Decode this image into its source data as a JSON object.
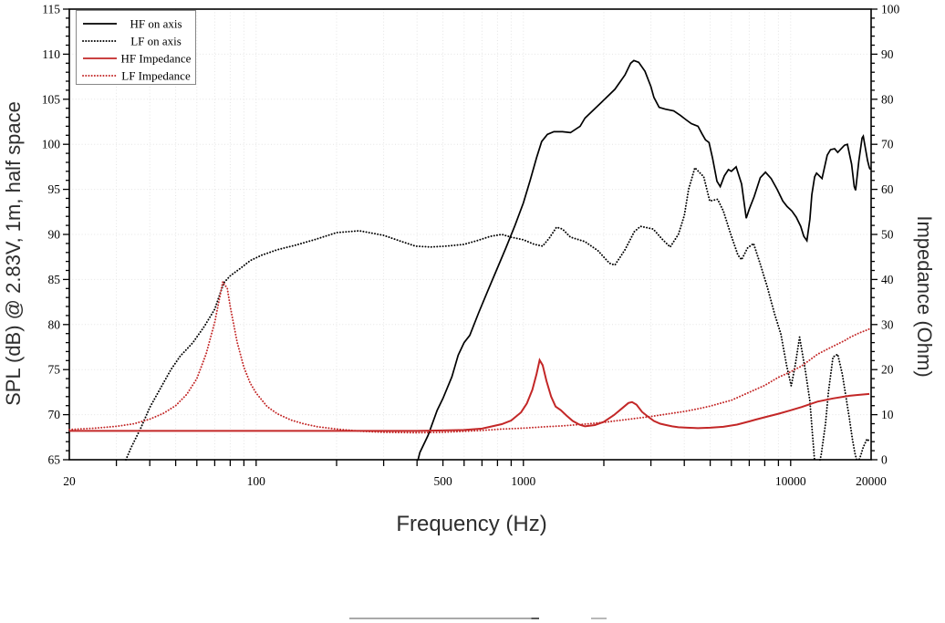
{
  "chart_data": {
    "type": "line",
    "title": "",
    "xlabel": "Frequency (Hz)",
    "ylabel_left": "SPL (dB) @ 2.83V, 1m, half space",
    "ylabel_right": "Impedance (Ohm)",
    "x_scale": "log",
    "x_range": [
      20,
      20000
    ],
    "x_tick_labels": [
      20,
      100,
      500,
      1000,
      10000,
      20000
    ],
    "y_left_range": [
      65,
      115
    ],
    "y_left_major_step": 5,
    "y_left_minor_step": 1,
    "y_right_range": [
      0,
      100
    ],
    "y_right_major_step": 10,
    "y_right_minor_step": 2,
    "grid": true,
    "grid_color": "#e4e4e4",
    "frame_color": "#000000",
    "legend_position": "top-left",
    "series": [
      {
        "name": "HF on axis",
        "axis": "left",
        "style": "solid",
        "color": "#000000",
        "points": [
          [
            392,
            63.5
          ],
          [
            410,
            65.8
          ],
          [
            440,
            67.7
          ],
          [
            476,
            70.5
          ],
          [
            500,
            71.8
          ],
          [
            540,
            74.2
          ],
          [
            570,
            76.6
          ],
          [
            600,
            78
          ],
          [
            630,
            78.8
          ],
          [
            680,
            81.3
          ],
          [
            735,
            83.7
          ],
          [
            795,
            86.1
          ],
          [
            860,
            88.5
          ],
          [
            930,
            91
          ],
          [
            1000,
            93.5
          ],
          [
            1060,
            96
          ],
          [
            1120,
            98.5
          ],
          [
            1170,
            100.3
          ],
          [
            1230,
            101.1
          ],
          [
            1300,
            101.4
          ],
          [
            1400,
            101.4
          ],
          [
            1500,
            101.3
          ],
          [
            1630,
            102
          ],
          [
            1700,
            102.9
          ],
          [
            1950,
            104.6
          ],
          [
            2200,
            106.1
          ],
          [
            2400,
            107.7
          ],
          [
            2520,
            109
          ],
          [
            2590,
            109.3
          ],
          [
            2700,
            109.1
          ],
          [
            2850,
            108.1
          ],
          [
            3000,
            106.4
          ],
          [
            3080,
            105.2
          ],
          [
            3220,
            104.1
          ],
          [
            3400,
            103.9
          ],
          [
            3650,
            103.7
          ],
          [
            3870,
            103.2
          ],
          [
            4070,
            102.7
          ],
          [
            4250,
            102.3
          ],
          [
            4500,
            102
          ],
          [
            4650,
            101.2
          ],
          [
            4800,
            100.5
          ],
          [
            4950,
            100.2
          ],
          [
            5100,
            98.5
          ],
          [
            5300,
            95.9
          ],
          [
            5450,
            95.3
          ],
          [
            5650,
            96.5
          ],
          [
            5850,
            97.2
          ],
          [
            6000,
            97
          ],
          [
            6250,
            97.5
          ],
          [
            6550,
            95.6
          ],
          [
            6700,
            93.5
          ],
          [
            6820,
            91.8
          ],
          [
            7000,
            92.8
          ],
          [
            7300,
            94.2
          ],
          [
            7700,
            96.3
          ],
          [
            8050,
            96.9
          ],
          [
            8450,
            96.2
          ],
          [
            8900,
            95
          ],
          [
            9350,
            93.7
          ],
          [
            9700,
            93.1
          ],
          [
            10100,
            92.6
          ],
          [
            10500,
            91.9
          ],
          [
            10900,
            90.9
          ],
          [
            11200,
            89.8
          ],
          [
            11500,
            89.3
          ],
          [
            11800,
            91.7
          ],
          [
            12000,
            94.4
          ],
          [
            12300,
            96.4
          ],
          [
            12500,
            96.8
          ],
          [
            13100,
            96.2
          ],
          [
            13700,
            98.8
          ],
          [
            14100,
            99.4
          ],
          [
            14600,
            99.5
          ],
          [
            15000,
            99.1
          ],
          [
            15900,
            99.9
          ],
          [
            16300,
            100
          ],
          [
            16900,
            97.8
          ],
          [
            17300,
            95.3
          ],
          [
            17500,
            94.9
          ],
          [
            18000,
            98.2
          ],
          [
            18500,
            100.7
          ],
          [
            18700,
            100.9
          ],
          [
            19400,
            98.2
          ],
          [
            19700,
            97.4
          ],
          [
            19900,
            97.2
          ]
        ]
      },
      {
        "name": "LF on axis",
        "axis": "left",
        "style": "dotted",
        "color": "#000000",
        "points": [
          [
            31,
            63.5
          ],
          [
            34,
            66.3
          ],
          [
            37,
            68.5
          ],
          [
            40,
            70.8
          ],
          [
            44,
            73
          ],
          [
            48,
            75
          ],
          [
            52,
            76.5
          ],
          [
            58,
            78
          ],
          [
            64,
            79.8
          ],
          [
            70,
            81.7
          ],
          [
            74,
            83.8
          ],
          [
            76,
            84.7
          ],
          [
            80,
            85.4
          ],
          [
            87,
            86.2
          ],
          [
            95,
            87.1
          ],
          [
            105,
            87.7
          ],
          [
            120,
            88.3
          ],
          [
            140,
            88.8
          ],
          [
            165,
            89.4
          ],
          [
            200,
            90.2
          ],
          [
            243,
            90.4
          ],
          [
            300,
            89.9
          ],
          [
            343,
            89.3
          ],
          [
            394,
            88.7
          ],
          [
            450,
            88.6
          ],
          [
            515,
            88.7
          ],
          [
            600,
            88.9
          ],
          [
            670,
            89.3
          ],
          [
            755,
            89.8
          ],
          [
            830,
            90
          ],
          [
            900,
            89.7
          ],
          [
            1000,
            89.4
          ],
          [
            1100,
            88.9
          ],
          [
            1180,
            88.7
          ],
          [
            1250,
            89.6
          ],
          [
            1330,
            90.8
          ],
          [
            1400,
            90.6
          ],
          [
            1500,
            89.7
          ],
          [
            1700,
            89.2
          ],
          [
            1900,
            88.2
          ],
          [
            2100,
            86.8
          ],
          [
            2200,
            86.6
          ],
          [
            2400,
            88.3
          ],
          [
            2600,
            90.3
          ],
          [
            2740,
            90.9
          ],
          [
            3060,
            90.6
          ],
          [
            3300,
            89.5
          ],
          [
            3540,
            88.6
          ],
          [
            3800,
            90
          ],
          [
            4000,
            92.1
          ],
          [
            4150,
            95
          ],
          [
            4380,
            97.4
          ],
          [
            4730,
            96.4
          ],
          [
            4980,
            93.7
          ],
          [
            5330,
            93.9
          ],
          [
            5600,
            92.6
          ],
          [
            5970,
            90
          ],
          [
            6350,
            87.7
          ],
          [
            6550,
            87.2
          ],
          [
            6900,
            88.5
          ],
          [
            7260,
            89
          ],
          [
            7700,
            86.7
          ],
          [
            8150,
            84.3
          ],
          [
            8700,
            81.2
          ],
          [
            9200,
            78.9
          ],
          [
            9650,
            75.5
          ],
          [
            10050,
            73.2
          ],
          [
            10400,
            75.5
          ],
          [
            10800,
            78.6
          ],
          [
            11350,
            74.9
          ],
          [
            11800,
            71.5
          ],
          [
            12050,
            68.1
          ],
          [
            12300,
            64.8
          ],
          [
            12600,
            63.8
          ],
          [
            13000,
            65.5
          ],
          [
            13500,
            69
          ],
          [
            13850,
            72.5
          ],
          [
            14400,
            76.4
          ],
          [
            15000,
            76.7
          ],
          [
            15600,
            74.5
          ],
          [
            16000,
            72.5
          ],
          [
            16600,
            69.5
          ],
          [
            17000,
            67.4
          ],
          [
            17400,
            65.7
          ],
          [
            17800,
            64.6
          ],
          [
            18300,
            65.5
          ],
          [
            18700,
            66.4
          ],
          [
            19300,
            67.3
          ],
          [
            19800,
            67
          ]
        ]
      },
      {
        "name": "HF Impedance",
        "axis": "right",
        "style": "solid",
        "color": "#c32727",
        "points": [
          [
            20,
            6.4
          ],
          [
            100,
            6.4
          ],
          [
            200,
            6.4
          ],
          [
            300,
            6.4
          ],
          [
            400,
            6.4
          ],
          [
            500,
            6.5
          ],
          [
            600,
            6.6
          ],
          [
            700,
            6.9
          ],
          [
            830,
            7.9
          ],
          [
            900,
            8.7
          ],
          [
            980,
            10.5
          ],
          [
            1030,
            12.5
          ],
          [
            1080,
            15.5
          ],
          [
            1120,
            19
          ],
          [
            1150,
            22.1
          ],
          [
            1180,
            21
          ],
          [
            1220,
            17.5
          ],
          [
            1270,
            14
          ],
          [
            1320,
            11.8
          ],
          [
            1380,
            11
          ],
          [
            1450,
            9.8
          ],
          [
            1530,
            8.6
          ],
          [
            1620,
            7.8
          ],
          [
            1700,
            7.4
          ],
          [
            1850,
            7.7
          ],
          [
            2000,
            8.4
          ],
          [
            2180,
            9.9
          ],
          [
            2350,
            11.5
          ],
          [
            2470,
            12.6
          ],
          [
            2550,
            12.8
          ],
          [
            2650,
            12.2
          ],
          [
            2780,
            10.6
          ],
          [
            2950,
            9.4
          ],
          [
            3080,
            8.6
          ],
          [
            3250,
            8
          ],
          [
            3420,
            7.7
          ],
          [
            3600,
            7.4
          ],
          [
            3800,
            7.2
          ],
          [
            4100,
            7.1
          ],
          [
            4500,
            7
          ],
          [
            5000,
            7.1
          ],
          [
            5600,
            7.3
          ],
          [
            6300,
            7.8
          ],
          [
            7000,
            8.5
          ],
          [
            7400,
            8.9
          ],
          [
            8200,
            9.6
          ],
          [
            9000,
            10.2
          ],
          [
            9900,
            10.9
          ],
          [
            11000,
            11.7
          ],
          [
            12600,
            12.9
          ],
          [
            14400,
            13.6
          ],
          [
            16600,
            14.2
          ],
          [
            18000,
            14.4
          ],
          [
            19700,
            14.6
          ]
        ]
      },
      {
        "name": "LF Impedance",
        "axis": "right",
        "style": "dotted",
        "color": "#c32727",
        "points": [
          [
            20,
            6.7
          ],
          [
            25,
            7
          ],
          [
            30,
            7.4
          ],
          [
            35,
            8
          ],
          [
            40,
            9
          ],
          [
            45,
            10.3
          ],
          [
            50,
            12
          ],
          [
            55,
            14.5
          ],
          [
            60,
            18
          ],
          [
            65,
            23.5
          ],
          [
            70,
            30.5
          ],
          [
            73,
            36
          ],
          [
            75,
            39.5
          ],
          [
            78,
            38
          ],
          [
            80,
            34
          ],
          [
            85,
            26
          ],
          [
            90,
            20.5
          ],
          [
            95,
            17
          ],
          [
            100,
            14.8
          ],
          [
            110,
            11.8
          ],
          [
            120,
            10.2
          ],
          [
            135,
            8.8
          ],
          [
            150,
            8
          ],
          [
            170,
            7.3
          ],
          [
            200,
            6.8
          ],
          [
            250,
            6.3
          ],
          [
            300,
            6.1
          ],
          [
            400,
            6
          ],
          [
            500,
            6.1
          ],
          [
            600,
            6.3
          ],
          [
            700,
            6.5
          ],
          [
            830,
            6.8
          ],
          [
            1000,
            7
          ],
          [
            1200,
            7.3
          ],
          [
            1400,
            7.5
          ],
          [
            1700,
            7.9
          ],
          [
            2000,
            8.3
          ],
          [
            2500,
            9
          ],
          [
            3000,
            9.6
          ],
          [
            3500,
            10.2
          ],
          [
            4000,
            10.7
          ],
          [
            4500,
            11.3
          ],
          [
            5000,
            11.9
          ],
          [
            6000,
            13.2
          ],
          [
            7400,
            15.6
          ],
          [
            8000,
            16.5
          ],
          [
            9000,
            18.3
          ],
          [
            9900,
            19.4
          ],
          [
            11000,
            20.8
          ],
          [
            12600,
            23.4
          ],
          [
            14000,
            24.8
          ],
          [
            16000,
            26.5
          ],
          [
            16600,
            27.1
          ],
          [
            18000,
            28.1
          ],
          [
            19700,
            29
          ]
        ]
      }
    ]
  }
}
